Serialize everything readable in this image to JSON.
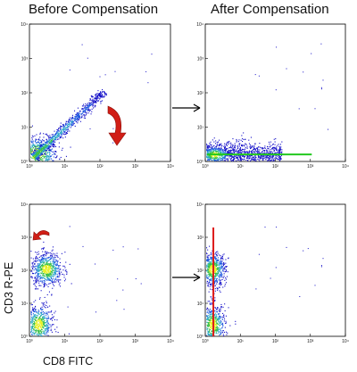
{
  "titles": {
    "before": "Before Compensation",
    "after": "After Compensation"
  },
  "axis_labels": {
    "x": "CD8 FITC",
    "y": "CD3 R-PE"
  },
  "chart_data": [
    {
      "type": "scatter",
      "title": "Before Compensation",
      "xscale": "log",
      "yscale": "log",
      "xlim": [
        1,
        10000
      ],
      "ylim": [
        1,
        10000
      ],
      "xticks": [
        "10⁰",
        "10¹",
        "10²",
        "10³",
        "10⁴"
      ],
      "yticks": [
        "10⁰",
        "10¹",
        "10²",
        "10³",
        "10⁴"
      ],
      "populations": [
        {
          "shape": "blob",
          "center": [
            1.6,
            1.7
          ],
          "spread": [
            0.3,
            0.25
          ],
          "n": 650
        },
        {
          "shape": "diagonal",
          "from": [
            1.3,
            1.4
          ],
          "to": [
            130,
            110
          ],
          "n": 900
        }
      ],
      "annotations": [
        {
          "type": "curved-arrow",
          "color": "#d11e16",
          "direction": "down"
        }
      ]
    },
    {
      "type": "scatter",
      "title": "After Compensation",
      "xscale": "log",
      "yscale": "log",
      "xlim": [
        1,
        10000
      ],
      "ylim": [
        1,
        10000
      ],
      "xticks": [
        "10⁰",
        "10¹",
        "10²",
        "10³",
        "10⁴"
      ],
      "yticks": [
        "10⁰",
        "10¹",
        "10²",
        "10³",
        "10⁴"
      ],
      "populations": [
        {
          "shape": "horizontal-band",
          "x_range": [
            1,
            150
          ],
          "y_center": 1.6,
          "n": 1400
        }
      ],
      "reference_lines": [
        {
          "orientation": "horizontal",
          "value": 1.6,
          "color": "#22c81e"
        }
      ]
    },
    {
      "type": "scatter",
      "xscale": "log",
      "yscale": "log",
      "xlim": [
        1,
        10000
      ],
      "ylim": [
        1,
        10000
      ],
      "xticks": [
        "10⁰",
        "10¹",
        "10²",
        "10³",
        "10⁴"
      ],
      "yticks": [
        "10⁰",
        "10¹",
        "10²",
        "10³",
        "10⁴"
      ],
      "populations": [
        {
          "shape": "blob",
          "center": [
            3.0,
            110
          ],
          "spread": [
            0.22,
            0.25
          ],
          "n": 700
        },
        {
          "shape": "blob",
          "center": [
            1.8,
            2.3
          ],
          "spread": [
            0.2,
            0.3
          ],
          "n": 600
        }
      ],
      "annotations": [
        {
          "type": "curved-arrow",
          "color": "#d11e16",
          "direction": "left"
        }
      ]
    },
    {
      "type": "scatter",
      "xscale": "log",
      "yscale": "log",
      "xlim": [
        1,
        10000
      ],
      "ylim": [
        1,
        10000
      ],
      "xticks": [
        "10⁰",
        "10¹",
        "10²",
        "10³",
        "10⁴"
      ],
      "yticks": [
        "10⁰",
        "10¹",
        "10²",
        "10³",
        "10⁴"
      ],
      "populations": [
        {
          "shape": "blob",
          "center": [
            1.6,
            110
          ],
          "spread": [
            0.18,
            0.25
          ],
          "n": 700
        },
        {
          "shape": "blob",
          "center": [
            1.6,
            2.3
          ],
          "spread": [
            0.18,
            0.3
          ],
          "n": 600
        }
      ],
      "reference_lines": [
        {
          "orientation": "vertical",
          "value": 1.7,
          "color": "#dd1a1a"
        }
      ]
    }
  ],
  "connector_arrows": [
    {
      "from": "Before Compensation",
      "to": "After Compensation"
    },
    {
      "from": "bottom-left",
      "to": "bottom-right"
    }
  ]
}
